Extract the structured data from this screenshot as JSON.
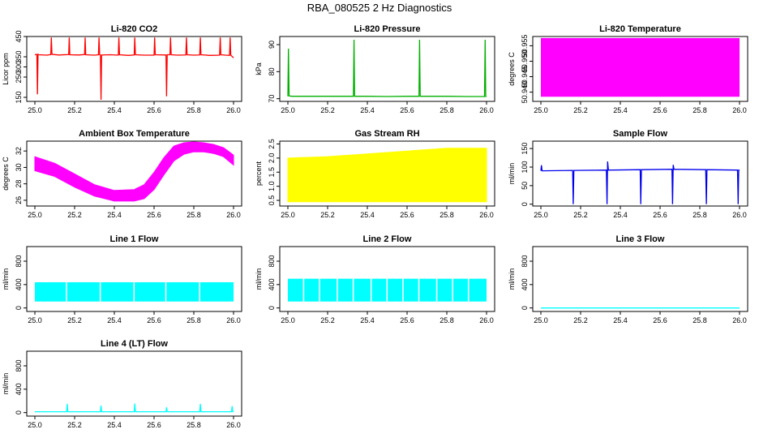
{
  "page": {
    "title": "RBA_080525  2 Hz Diagnostics"
  },
  "chart_data": [
    {
      "type": "line",
      "title": "Li-820 CO2",
      "ylabel": "Licor ppm",
      "xlim": [
        25.0,
        26.0
      ],
      "ylim": [
        130,
        450
      ],
      "xticks": [
        "25.0",
        "25.2",
        "25.4",
        "25.6",
        "25.8",
        "26.0"
      ],
      "yticks": [
        {
          "v": 150,
          "label": "150"
        },
        {
          "v": 250,
          "label": "250"
        },
        {
          "v": 300,
          "label": "300"
        },
        {
          "v": 350,
          "label": "350"
        },
        {
          "v": 450,
          "label": "450"
        }
      ],
      "color": "#ff0000",
      "series": [
        {
          "name": "CO2",
          "x": [
            25.0,
            25.01,
            25.013,
            25.016,
            25.02,
            25.06,
            25.08,
            25.083,
            25.086,
            25.12,
            25.17,
            25.173,
            25.176,
            25.22,
            25.25,
            25.253,
            25.256,
            25.3,
            25.32,
            25.323,
            25.326,
            25.33,
            25.333,
            25.336,
            25.38,
            25.42,
            25.423,
            25.426,
            25.47,
            25.5,
            25.503,
            25.506,
            25.55,
            25.6,
            25.603,
            25.606,
            25.66,
            25.663,
            25.666,
            25.68,
            25.683,
            25.686,
            25.72,
            25.76,
            25.763,
            25.766,
            25.8,
            25.83,
            25.833,
            25.836,
            25.88,
            25.93,
            25.933,
            25.936,
            25.96,
            25.98,
            25.983,
            25.986,
            26.0
          ],
          "y": [
            360,
            362,
            165,
            362,
            360,
            358,
            361,
            445,
            362,
            359,
            361,
            445,
            360,
            359,
            361,
            445,
            360,
            358,
            360,
            445,
            360,
            359,
            138,
            359,
            360,
            358,
            445,
            360,
            357,
            359,
            445,
            360,
            358,
            358,
            445,
            360,
            359,
            155,
            360,
            360,
            445,
            360,
            358,
            359,
            445,
            360,
            358,
            359,
            445,
            360,
            357,
            358,
            445,
            360,
            358,
            357,
            445,
            358,
            345
          ]
        }
      ]
    },
    {
      "type": "line",
      "title": "Li-820 Pressure",
      "ylabel": "kPa",
      "xlim": [
        25.0,
        26.0
      ],
      "ylim": [
        69,
        93
      ],
      "xticks": [
        "25.0",
        "25.2",
        "25.4",
        "25.6",
        "25.8",
        "26.0"
      ],
      "yticks": [
        {
          "v": 70,
          "label": "70"
        },
        {
          "v": 80,
          "label": "80"
        },
        {
          "v": 90,
          "label": "90"
        }
      ],
      "color": "#00b000",
      "series": [
        {
          "name": "Pressure",
          "x": [
            25.0,
            25.003,
            25.006,
            25.02,
            25.1,
            25.2,
            25.3,
            25.33,
            25.333,
            25.336,
            25.4,
            25.5,
            25.6,
            25.66,
            25.663,
            25.666,
            25.7,
            25.8,
            25.9,
            25.99,
            25.993,
            25.996,
            26.0
          ],
          "y": [
            70.9,
            88.5,
            71.0,
            70.9,
            70.9,
            70.9,
            70.9,
            70.9,
            91.8,
            70.9,
            70.9,
            70.8,
            70.9,
            70.9,
            91.8,
            70.9,
            70.9,
            70.9,
            70.8,
            70.8,
            91.8,
            70.8,
            70.8
          ]
        }
      ]
    },
    {
      "type": "area",
      "title": "Li-820 Temperature",
      "ylabel": "degrees C",
      "xlim": [
        25.0,
        26.0
      ],
      "ylim": [
        50.937,
        50.958
      ],
      "xticks": [
        "25.0",
        "25.2",
        "25.4",
        "25.6",
        "25.8",
        "26.0"
      ],
      "yticks": [
        {
          "v": 50.94,
          "label": "50.940"
        },
        {
          "v": 50.945,
          "label": "50.945"
        },
        {
          "v": 50.95,
          "label": "50.950"
        },
        {
          "v": 50.955,
          "label": "50.955"
        }
      ],
      "color": "#ff00ff",
      "series": [
        {
          "name": "Temperature",
          "low": 50.9385,
          "high": 50.9575,
          "x": [
            25.0,
            26.0
          ]
        }
      ]
    },
    {
      "type": "area",
      "title": "Ambient Box Temperature",
      "ylabel": "degrees C",
      "xlim": [
        25.0,
        26.0
      ],
      "ylim": [
        25.3,
        33.2
      ],
      "xticks": [
        "25.0",
        "25.2",
        "25.4",
        "25.6",
        "25.8",
        "26.0"
      ],
      "yticks": [
        {
          "v": 26,
          "label": "26"
        },
        {
          "v": 28,
          "label": "28"
        },
        {
          "v": 30,
          "label": "30"
        },
        {
          "v": 32,
          "label": "32"
        }
      ],
      "color": "#ff00ff",
      "series": [
        {
          "name": "Ambient",
          "x": [
            25.0,
            25.1,
            25.2,
            25.3,
            25.4,
            25.5,
            25.55,
            25.6,
            25.65,
            25.7,
            25.75,
            25.8,
            25.85,
            25.9,
            25.95,
            26.0
          ],
          "low": [
            29.6,
            28.9,
            27.6,
            26.5,
            25.9,
            25.9,
            26.2,
            27.3,
            29.1,
            30.8,
            31.6,
            31.9,
            31.9,
            31.7,
            31.3,
            30.3
          ],
          "high": [
            31.3,
            30.5,
            29.2,
            27.9,
            27.2,
            27.3,
            27.9,
            29.4,
            31.2,
            32.6,
            33.0,
            33.1,
            33.0,
            32.8,
            32.4,
            31.5
          ]
        }
      ]
    },
    {
      "type": "area",
      "title": "Gas Stream RH",
      "ylabel": "percent",
      "xlim": [
        25.0,
        26.0
      ],
      "ylim": [
        0.3,
        2.6
      ],
      "xticks": [
        "25.0",
        "25.2",
        "25.4",
        "25.6",
        "25.8",
        "26.0"
      ],
      "yticks": [
        {
          "v": 0.5,
          "label": "0.5"
        },
        {
          "v": 1.0,
          "label": "1.0"
        },
        {
          "v": 1.5,
          "label": "1.5"
        },
        {
          "v": 2.0,
          "label": "2.0"
        },
        {
          "v": 2.5,
          "label": "2.5"
        }
      ],
      "color": "#ffff00",
      "series": [
        {
          "name": "RH",
          "x": [
            25.0,
            25.2,
            25.4,
            25.6,
            25.8,
            26.0
          ],
          "low": [
            0.45,
            0.45,
            0.45,
            0.45,
            0.45,
            0.45
          ],
          "high": [
            2.0,
            2.05,
            2.15,
            2.25,
            2.35,
            2.35
          ]
        }
      ]
    },
    {
      "type": "line",
      "title": "Sample Flow",
      "ylabel": "ml/min",
      "xlim": [
        25.0,
        26.0
      ],
      "ylim": [
        -5,
        170
      ],
      "xticks": [
        "25.0",
        "25.2",
        "25.4",
        "25.6",
        "25.8",
        "26.0"
      ],
      "yticks": [
        {
          "v": 0,
          "label": "0"
        },
        {
          "v": 50,
          "label": "50"
        },
        {
          "v": 100,
          "label": "100"
        },
        {
          "v": 150,
          "label": "150"
        }
      ],
      "color": "#0000ee",
      "series": [
        {
          "name": "SampleFlow",
          "x": [
            25.0,
            25.003,
            25.006,
            25.16,
            25.163,
            25.166,
            25.33,
            25.333,
            25.336,
            25.34,
            25.5,
            25.503,
            25.506,
            25.66,
            25.663,
            25.666,
            25.67,
            25.83,
            25.833,
            25.836,
            25.99,
            25.993,
            25.996,
            26.0
          ],
          "y": [
            90,
            105,
            90,
            91,
            0,
            91,
            92,
            0,
            115,
            92,
            93,
            0,
            93,
            94,
            0,
            106,
            94,
            93,
            0,
            93,
            92,
            0,
            92,
            92
          ]
        }
      ]
    },
    {
      "type": "area",
      "title": "Line 1 Flow",
      "ylabel": "ml/min",
      "xlim": [
        25.0,
        26.0
      ],
      "ylim": [
        -60,
        1050
      ],
      "xticks": [
        "25.0",
        "25.2",
        "25.4",
        "25.6",
        "25.8",
        "26.0"
      ],
      "yticks": [
        {
          "v": 0,
          "label": "0"
        },
        {
          "v": 400,
          "label": "400"
        },
        {
          "v": 800,
          "label": "800"
        }
      ],
      "color": "#00ffff",
      "series": [
        {
          "name": "Line1",
          "low": 110,
          "high": 440,
          "x": [
            25.0,
            26.0
          ],
          "gaps": [
            25.16,
            25.33,
            25.5,
            25.66,
            25.83
          ]
        }
      ]
    },
    {
      "type": "area",
      "title": "Line 2 Flow",
      "ylabel": "ml/min",
      "xlim": [
        25.0,
        26.0
      ],
      "ylim": [
        -60,
        1050
      ],
      "xticks": [
        "25.0",
        "25.2",
        "25.4",
        "25.6",
        "25.8",
        "26.0"
      ],
      "yticks": [
        {
          "v": 0,
          "label": "0"
        },
        {
          "v": 400,
          "label": "400"
        },
        {
          "v": 800,
          "label": "800"
        }
      ],
      "color": "#00ffff",
      "series": [
        {
          "name": "Line2",
          "low": 110,
          "high": 500,
          "x": [
            25.0,
            26.0
          ],
          "gaps": [
            25.08,
            25.16,
            25.25,
            25.33,
            25.42,
            25.5,
            25.58,
            25.66,
            25.75,
            25.83,
            25.91
          ]
        }
      ]
    },
    {
      "type": "line",
      "title": "Line 3 Flow",
      "ylabel": "ml/min",
      "xlim": [
        25.0,
        26.0
      ],
      "ylim": [
        -60,
        1050
      ],
      "xticks": [
        "25.0",
        "25.2",
        "25.4",
        "25.6",
        "25.8",
        "26.0"
      ],
      "yticks": [
        {
          "v": 0,
          "label": "0"
        },
        {
          "v": 400,
          "label": "400"
        },
        {
          "v": 800,
          "label": "800"
        }
      ],
      "color": "#00ffff",
      "series": [
        {
          "name": "Line3",
          "x": [
            25.0,
            26.0
          ],
          "y": [
            0,
            0
          ]
        }
      ]
    },
    {
      "type": "line",
      "title": "Line 4 (LT) Flow",
      "ylabel": "ml/min",
      "xlim": [
        25.0,
        26.0
      ],
      "ylim": [
        -60,
        1050
      ],
      "xticks": [
        "25.0",
        "25.2",
        "25.4",
        "25.6",
        "25.8",
        "26.0"
      ],
      "yticks": [
        {
          "v": 0,
          "label": "0"
        },
        {
          "v": 400,
          "label": "400"
        },
        {
          "v": 800,
          "label": "800"
        }
      ],
      "color": "#00ffff",
      "series": [
        {
          "name": "Line4",
          "x": [
            25.0,
            25.16,
            25.163,
            25.166,
            25.33,
            25.333,
            25.336,
            25.5,
            25.503,
            25.506,
            25.66,
            25.663,
            25.666,
            25.83,
            25.833,
            25.836,
            25.99,
            25.993,
            25.996,
            26.0
          ],
          "y": [
            15,
            15,
            150,
            15,
            15,
            120,
            15,
            15,
            155,
            15,
            15,
            90,
            15,
            15,
            150,
            15,
            15,
            110,
            15,
            15
          ]
        }
      ]
    }
  ]
}
